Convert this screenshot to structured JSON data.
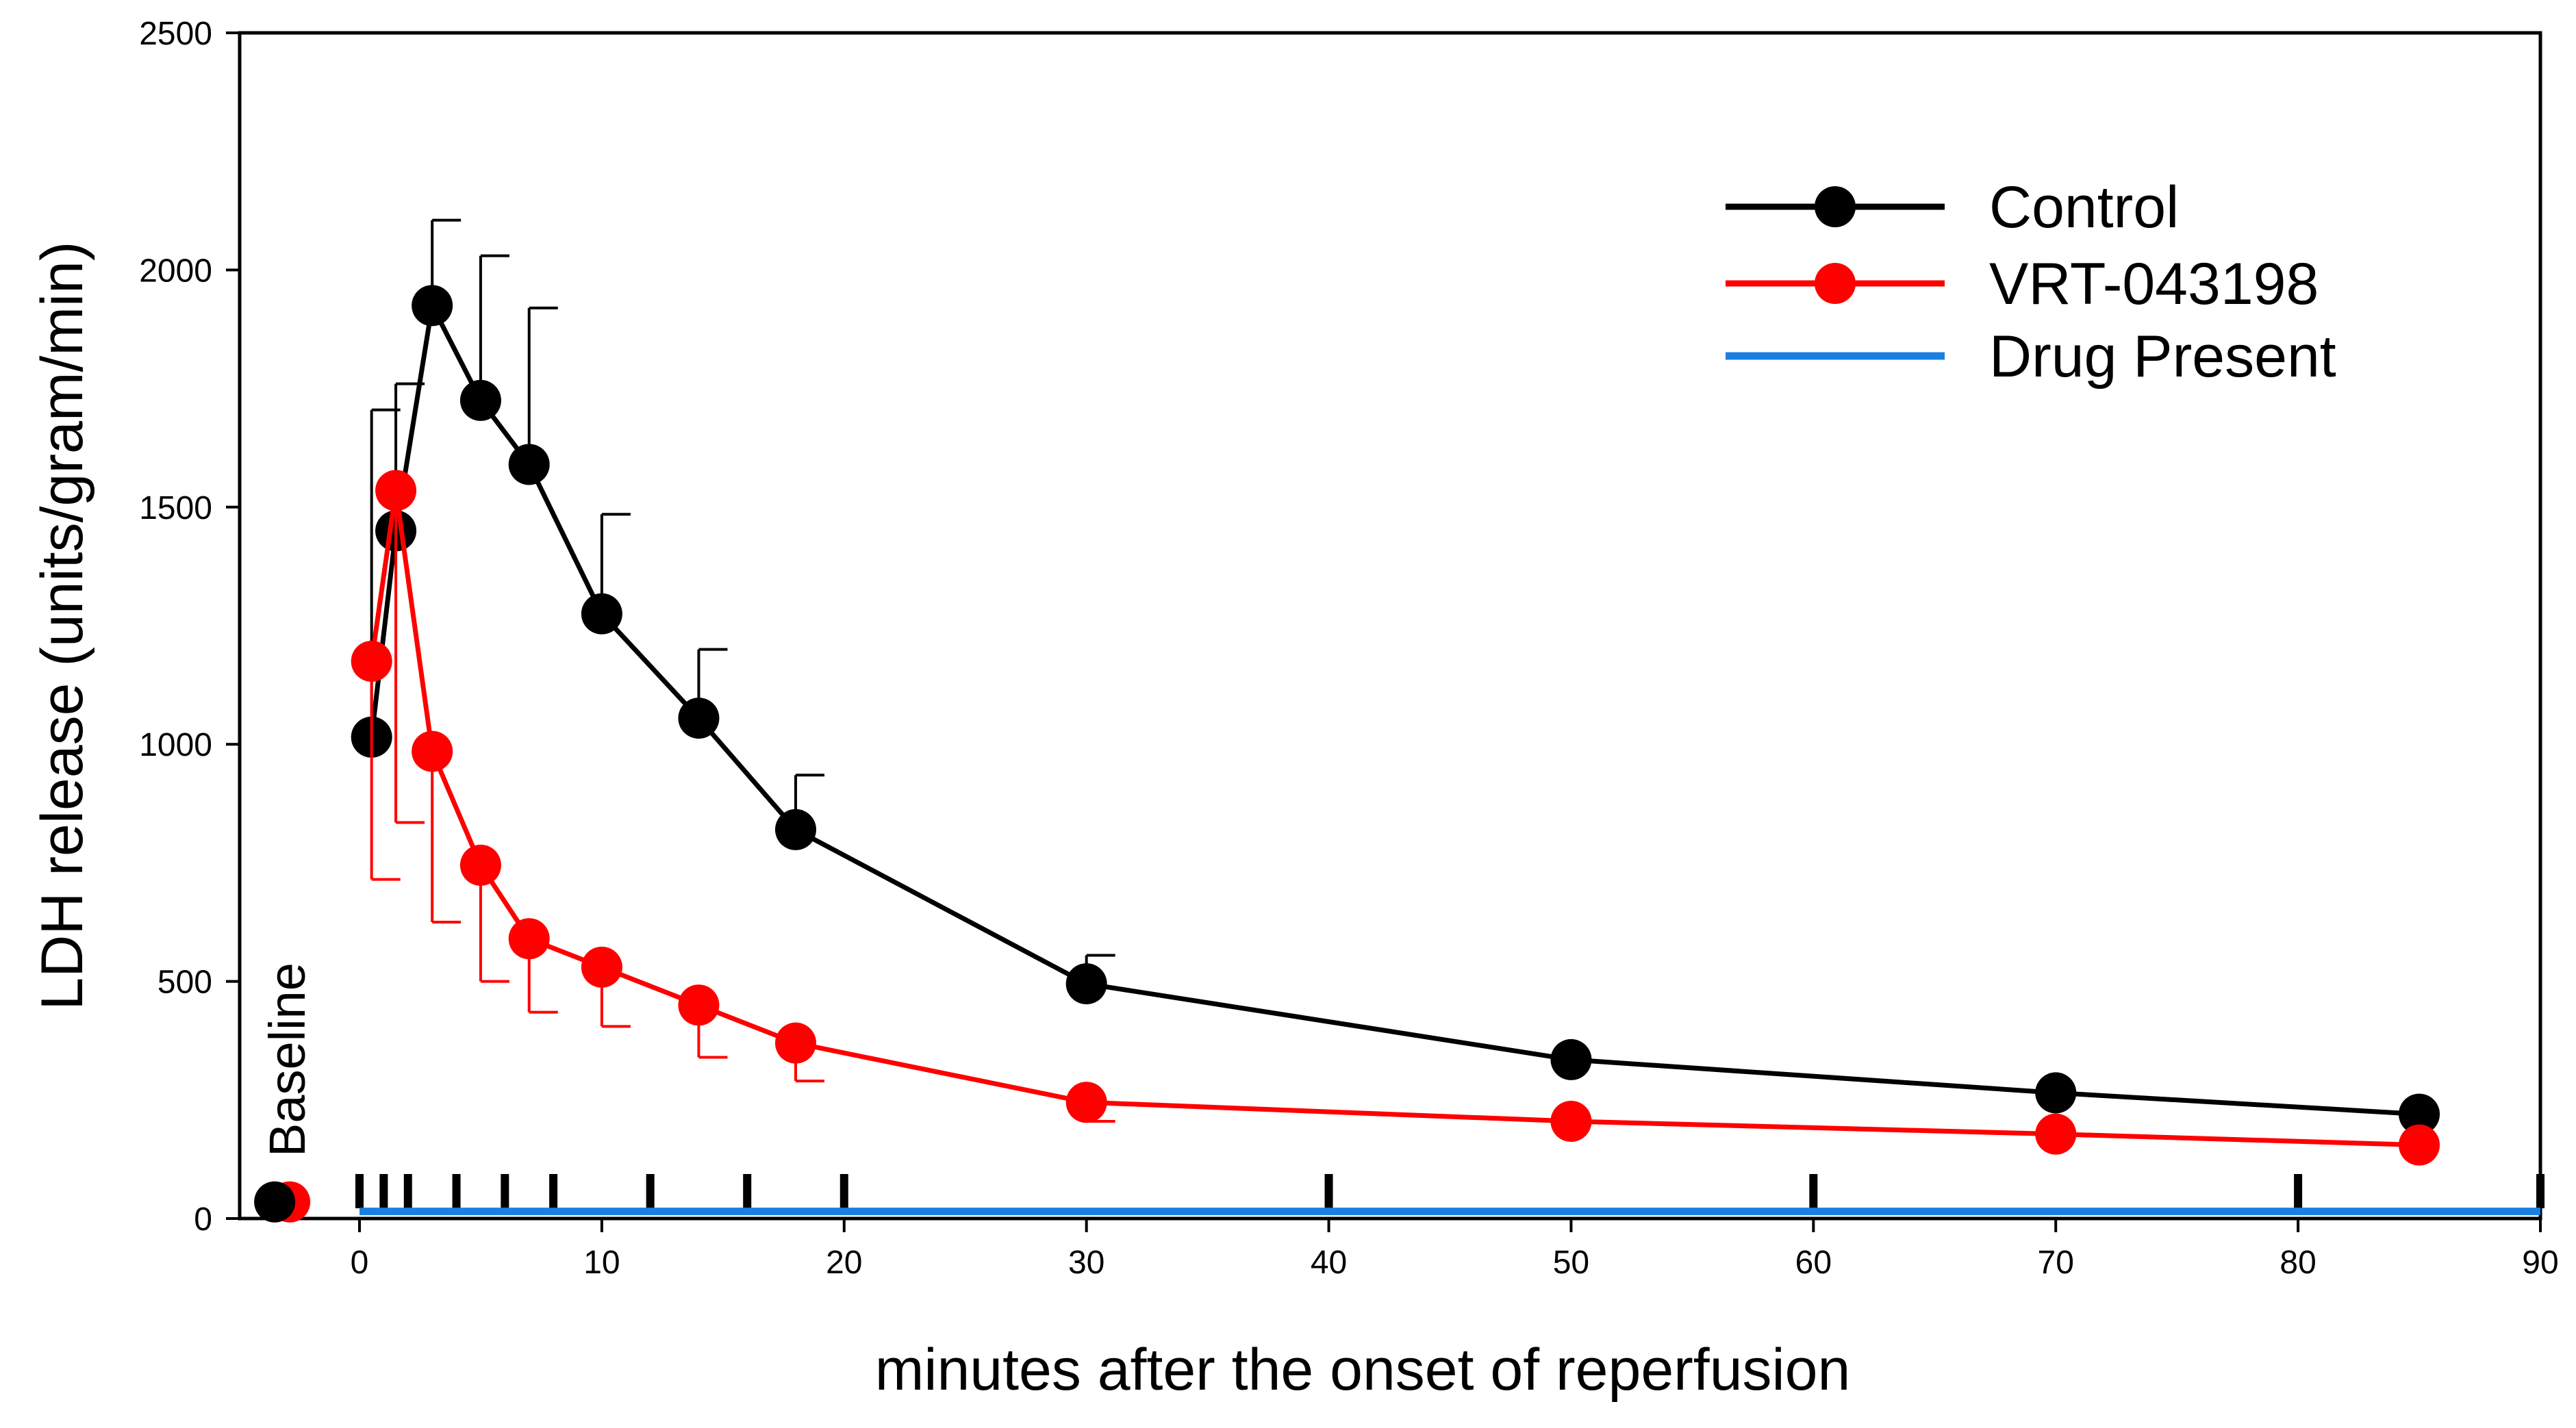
{
  "chart_data": {
    "type": "line",
    "title": "",
    "xlabel": "minutes after the onset of reperfusion",
    "ylabel": "LDH release (units/gram/min)",
    "xlim": [
      -5,
      90
    ],
    "ylim": [
      0,
      2500
    ],
    "x_ticks": [
      0,
      10,
      20,
      30,
      40,
      50,
      60,
      70,
      80,
      90
    ],
    "y_ticks": [
      0,
      500,
      1000,
      1500,
      2000,
      2500
    ],
    "sample_marks": [
      0,
      1,
      2,
      4,
      6,
      8,
      12,
      16,
      20,
      40,
      60,
      80,
      90
    ],
    "baseline_label": "Baseline",
    "baseline": {
      "x": -3.5,
      "control": 35,
      "vrt": 35
    },
    "series": [
      {
        "name": "Control",
        "color": "#000000",
        "x": [
          0.5,
          1.5,
          3,
          5,
          7,
          10,
          14,
          18,
          30,
          50,
          70,
          85
        ],
        "y": [
          1015,
          1450,
          1925,
          1725,
          1590,
          1275,
          1055,
          820,
          495,
          335,
          265,
          220
        ],
        "error": [
          690,
          310,
          180,
          305,
          330,
          210,
          145,
          115,
          60,
          0,
          0,
          0
        ]
      },
      {
        "name": "VRT-043198",
        "color": "#ff0000",
        "x": [
          0.5,
          1.5,
          3,
          5,
          7,
          10,
          14,
          18,
          30,
          50,
          70,
          85
        ],
        "y": [
          1175,
          1535,
          985,
          745,
          590,
          530,
          450,
          370,
          245,
          205,
          178,
          155
        ],
        "error": [
          460,
          700,
          360,
          245,
          155,
          125,
          110,
          80,
          40,
          0,
          0,
          0
        ]
      }
    ],
    "drug_present": {
      "name": "Drug Present",
      "color": "#1a7fe0",
      "x_start": 0,
      "x_end": 90,
      "y": 15
    },
    "legend": {
      "position": "top-right",
      "items": [
        "Control",
        "VRT-043198",
        "Drug Present"
      ]
    }
  }
}
